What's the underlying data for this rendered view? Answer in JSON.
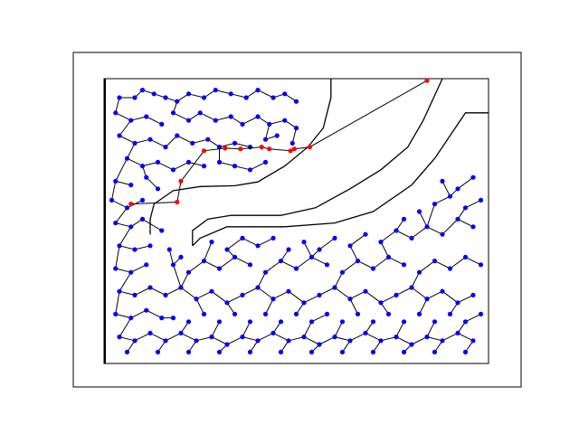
{
  "figure": {
    "description_visible_text": ""
  },
  "colors": {
    "background": "#ffffff",
    "frame": "#000000",
    "obstacle": "#000000",
    "edge": "#000000",
    "tree_node": "#0000ff",
    "path_node": "#ff0000"
  },
  "chart_data": {
    "type": "scatter",
    "title": "",
    "xlabel": "",
    "ylabel": "",
    "grid": false,
    "legend": "none",
    "xlim": [
      0,
      100
    ],
    "ylim": [
      0,
      75
    ],
    "world_boundary": [
      [
        0,
        0
      ],
      [
        100,
        0
      ],
      [
        100,
        75
      ],
      [
        0,
        75
      ]
    ],
    "obstacle_outline": [
      [
        59,
        75
      ],
      [
        59,
        70
      ],
      [
        57,
        62
      ],
      [
        53,
        57
      ],
      [
        47,
        52
      ],
      [
        40,
        47.8
      ],
      [
        34,
        46.8
      ],
      [
        25,
        46.6
      ],
      [
        18,
        45.5
      ],
      [
        13,
        42
      ],
      [
        12,
        38
      ],
      [
        12,
        34
      ]
    ],
    "corridor_inner": [
      [
        23,
        31
      ],
      [
        23,
        35
      ],
      [
        27,
        38
      ],
      [
        33,
        39
      ],
      [
        46,
        39
      ],
      [
        55,
        41
      ],
      [
        64,
        46
      ],
      [
        72,
        51
      ],
      [
        79,
        57
      ],
      [
        83,
        64
      ],
      [
        88,
        75
      ]
    ],
    "corridor_outer": [
      [
        23,
        31
      ],
      [
        25,
        33
      ],
      [
        32,
        36
      ],
      [
        47,
        36
      ],
      [
        60,
        37
      ],
      [
        70,
        40
      ],
      [
        80,
        47
      ],
      [
        86,
        54
      ],
      [
        90,
        60
      ],
      [
        94,
        66
      ],
      [
        100,
        66
      ]
    ],
    "start_point": [
      84,
      74.5
    ],
    "path_nodes": [
      [
        84,
        74.5
      ],
      [
        53.5,
        57
      ],
      [
        49.5,
        56.5
      ],
      [
        48.5,
        56
      ],
      [
        43,
        56.5
      ],
      [
        41,
        57
      ],
      [
        35.5,
        56.5
      ],
      [
        31.5,
        56.7
      ],
      [
        26,
        56
      ],
      [
        20,
        48
      ],
      [
        19,
        42.5
      ],
      [
        7,
        42
      ]
    ],
    "tree_nodes": [
      [
        4,
        70
      ],
      [
        8,
        70
      ],
      [
        10,
        72
      ],
      [
        13,
        71
      ],
      [
        16,
        70
      ],
      [
        19,
        69
      ],
      [
        22,
        71
      ],
      [
        26,
        70
      ],
      [
        29,
        72
      ],
      [
        33,
        71
      ],
      [
        37,
        70
      ],
      [
        40,
        72
      ],
      [
        44,
        70
      ],
      [
        47,
        71
      ],
      [
        50,
        69
      ],
      [
        3,
        66
      ],
      [
        7,
        64
      ],
      [
        11,
        65
      ],
      [
        15,
        63
      ],
      [
        18,
        66
      ],
      [
        22,
        64
      ],
      [
        25,
        66
      ],
      [
        29,
        64
      ],
      [
        33,
        65
      ],
      [
        36,
        63
      ],
      [
        40,
        65
      ],
      [
        43,
        63
      ],
      [
        47,
        64
      ],
      [
        50,
        62
      ],
      [
        4,
        60
      ],
      [
        8,
        58
      ],
      [
        12,
        59
      ],
      [
        16,
        57
      ],
      [
        19,
        60
      ],
      [
        23,
        58
      ],
      [
        27,
        59
      ],
      [
        30,
        57
      ],
      [
        34,
        58
      ],
      [
        38,
        57
      ],
      [
        42,
        59
      ],
      [
        45,
        60
      ],
      [
        49,
        58
      ],
      [
        6,
        54
      ],
      [
        10,
        52
      ],
      [
        14,
        53
      ],
      [
        18,
        51
      ],
      [
        22,
        53
      ],
      [
        26,
        52
      ],
      [
        30,
        53
      ],
      [
        34,
        52
      ],
      [
        38,
        51
      ],
      [
        42,
        53
      ],
      [
        3,
        48
      ],
      [
        7,
        47
      ],
      [
        11,
        49
      ],
      [
        14,
        46
      ],
      [
        2,
        43
      ],
      [
        6,
        41
      ],
      [
        10,
        43
      ],
      [
        3,
        37
      ],
      [
        7,
        36
      ],
      [
        10,
        38
      ],
      [
        4,
        31
      ],
      [
        8,
        30
      ],
      [
        3,
        25
      ],
      [
        7,
        24
      ],
      [
        11,
        26
      ],
      [
        4,
        19
      ],
      [
        8,
        18
      ],
      [
        12,
        20
      ],
      [
        3,
        13
      ],
      [
        7,
        12
      ],
      [
        11,
        14
      ],
      [
        15,
        12
      ],
      [
        4,
        7
      ],
      [
        8,
        6
      ],
      [
        12,
        8
      ],
      [
        16,
        6
      ],
      [
        20,
        8
      ],
      [
        24,
        6
      ],
      [
        28,
        7
      ],
      [
        32,
        5
      ],
      [
        36,
        7
      ],
      [
        40,
        6
      ],
      [
        44,
        8
      ],
      [
        48,
        6
      ],
      [
        52,
        7
      ],
      [
        56,
        5
      ],
      [
        60,
        7
      ],
      [
        64,
        6
      ],
      [
        68,
        8
      ],
      [
        72,
        6
      ],
      [
        76,
        7
      ],
      [
        80,
        5
      ],
      [
        84,
        7
      ],
      [
        88,
        6
      ],
      [
        92,
        8
      ],
      [
        96,
        6
      ],
      [
        16,
        18
      ],
      [
        20,
        20
      ],
      [
        24,
        17
      ],
      [
        28,
        19
      ],
      [
        32,
        16
      ],
      [
        36,
        18
      ],
      [
        40,
        20
      ],
      [
        44,
        17
      ],
      [
        48,
        19
      ],
      [
        52,
        16
      ],
      [
        56,
        18
      ],
      [
        60,
        20
      ],
      [
        64,
        17
      ],
      [
        68,
        19
      ],
      [
        72,
        16
      ],
      [
        76,
        18
      ],
      [
        80,
        20
      ],
      [
        84,
        17
      ],
      [
        88,
        19
      ],
      [
        92,
        16
      ],
      [
        96,
        18
      ],
      [
        18,
        26
      ],
      [
        22,
        24
      ],
      [
        26,
        27
      ],
      [
        30,
        25
      ],
      [
        34,
        28
      ],
      [
        38,
        26
      ],
      [
        42,
        24
      ],
      [
        46,
        27
      ],
      [
        50,
        25
      ],
      [
        54,
        28
      ],
      [
        58,
        26
      ],
      [
        62,
        24
      ],
      [
        66,
        27
      ],
      [
        70,
        25
      ],
      [
        74,
        28
      ],
      [
        78,
        26
      ],
      [
        82,
        24
      ],
      [
        86,
        27
      ],
      [
        90,
        25
      ],
      [
        94,
        28
      ],
      [
        98,
        26
      ],
      [
        18,
        12
      ],
      [
        22,
        11
      ],
      [
        26,
        13
      ],
      [
        30,
        11
      ],
      [
        34,
        13
      ],
      [
        38,
        11
      ],
      [
        42,
        13
      ],
      [
        46,
        11
      ],
      [
        50,
        13
      ],
      [
        54,
        11
      ],
      [
        58,
        13
      ],
      [
        62,
        11
      ],
      [
        66,
        13
      ],
      [
        70,
        11
      ],
      [
        74,
        13
      ],
      [
        78,
        11
      ],
      [
        82,
        13
      ],
      [
        86,
        11
      ],
      [
        90,
        13
      ],
      [
        94,
        11
      ],
      [
        98,
        13
      ],
      [
        28,
        32
      ],
      [
        32,
        30
      ],
      [
        36,
        33
      ],
      [
        40,
        31
      ],
      [
        44,
        33
      ],
      [
        48,
        30
      ],
      [
        52,
        32
      ],
      [
        56,
        30
      ],
      [
        60,
        33
      ],
      [
        64,
        31
      ],
      [
        68,
        34
      ],
      [
        72,
        32
      ],
      [
        76,
        35
      ],
      [
        80,
        33
      ],
      [
        84,
        36
      ],
      [
        88,
        34
      ],
      [
        92,
        38
      ],
      [
        96,
        36
      ],
      [
        86,
        42
      ],
      [
        90,
        44
      ],
      [
        94,
        41
      ],
      [
        98,
        43
      ],
      [
        88,
        48
      ],
      [
        92,
        46
      ],
      [
        96,
        49
      ],
      [
        82,
        40
      ],
      [
        78,
        38
      ],
      [
        6,
        3
      ],
      [
        14,
        3
      ],
      [
        22,
        3
      ],
      [
        30,
        3
      ],
      [
        38,
        3
      ],
      [
        46,
        3
      ],
      [
        54,
        3
      ],
      [
        62,
        3
      ],
      [
        70,
        3
      ],
      [
        78,
        3
      ],
      [
        86,
        3
      ],
      [
        94,
        3
      ],
      [
        15,
        35
      ],
      [
        17,
        30
      ],
      [
        20,
        28
      ],
      [
        12,
        31
      ]
    ]
  }
}
